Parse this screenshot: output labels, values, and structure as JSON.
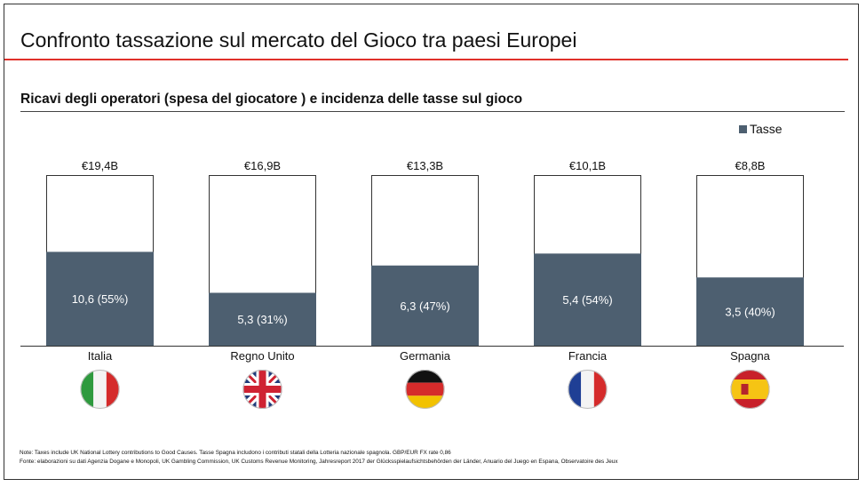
{
  "header": {
    "title": "Confronto tassazione sul mercato del Gioco tra paesi Europei",
    "subtitle": "Ricavi degli operatori (spesa del giocatore ) e incidenza delle tasse sul gioco"
  },
  "legend": {
    "label": "Tasse",
    "color": "#4d5f70"
  },
  "colors": {
    "tax": "#4d5f70",
    "bar_outline": "#333333",
    "accent": "#e0312b"
  },
  "chart_data": {
    "type": "bar",
    "stacked": true,
    "categories": [
      "Italia",
      "Regno Unito",
      "Germania",
      "Francia",
      "Spagna"
    ],
    "totals": [
      19.4,
      16.9,
      13.3,
      10.1,
      8.8
    ],
    "total_labels": [
      "€19,4B",
      "€16,9B",
      "€13,3B",
      "€10,1B",
      "€8,8B"
    ],
    "tax_share": [
      0.55,
      0.31,
      0.47,
      0.54,
      0.4
    ],
    "series": [
      {
        "name": "Tasse",
        "values": [
          10.6,
          5.3,
          6.3,
          5.4,
          3.5
        ]
      }
    ],
    "tax_labels": [
      "10,6 (55%)",
      "5,3 (31%)",
      "6,3 (47%)",
      "5,4 (54%)",
      "3,5 (40%)"
    ],
    "flags": [
      "italy-flag",
      "uk-flag",
      "germany-flag",
      "france-flag",
      "spain-flag"
    ],
    "legend_position": "top-right"
  },
  "notes": {
    "line1": "Note: Taxes include UK National Lottery contributions to Good Causes. Tasse Spagna includono i contributi statali della Lotteria nazionale spagnola. GBP/EUR FX rate 0,86",
    "line2": "Fonte: elaborazioni su dati Agenzia Dogane e Monopoli, UK Gambling Commission, UK Customs Revenue Monitoring, Jahresreport 2017 der Glücksspielaufsichtsbehörden der Länder, Anuario del Juego en Espana, Observatoire des Jeux"
  }
}
